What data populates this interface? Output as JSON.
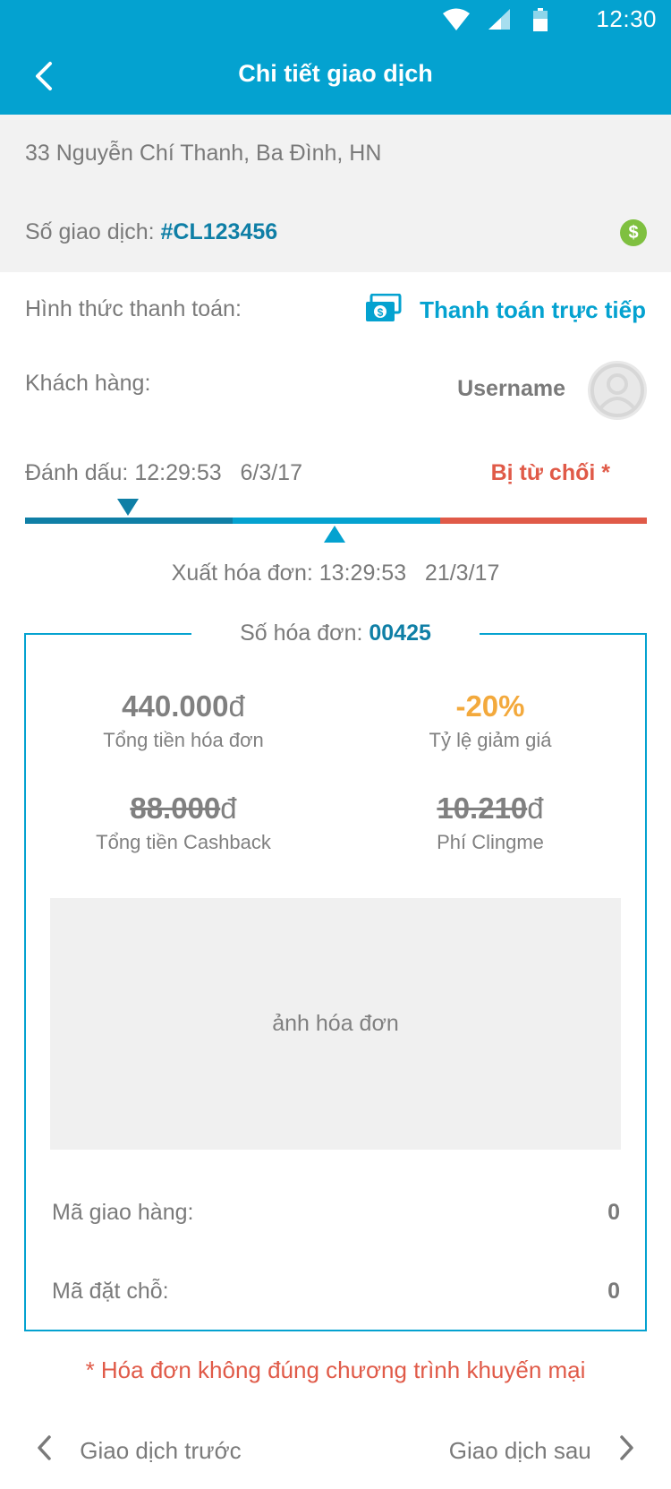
{
  "status_bar": {
    "time": "12:30",
    "icons": [
      "wifi-icon",
      "signal-icon",
      "battery-icon"
    ]
  },
  "header": {
    "title": "Chi tiết giao dịch",
    "back_icon": "back-arrow-icon"
  },
  "store": {
    "address": "33 Nguyễn Chí Thanh, Ba Đình, HN"
  },
  "transaction": {
    "label": "Số giao dịch: ",
    "number": "#CL123456",
    "status_icon": "dollar-circle-icon"
  },
  "payment": {
    "label": "Hình thức thanh toán:",
    "method": "Thanh toán trực tiếp",
    "icon": "cash-icon"
  },
  "customer": {
    "label": "Khách hàng:",
    "name": "Username"
  },
  "timeline": {
    "mark_label": "Đánh dấu: 12:29:53   6/3/17",
    "status": "Bị từ chối *",
    "invoice_label": "Xuất hóa đơn: 13:29:53   21/3/17",
    "colors": [
      "#0f7fa6",
      "#04a2d0",
      "#e05a48"
    ]
  },
  "invoice": {
    "label": "Số hóa đơn: ",
    "number": "00425",
    "total": {
      "value": "440.000",
      "currency": "đ",
      "label": "Tổng tiền hóa đơn"
    },
    "discount": {
      "value": "-20%",
      "label": "Tỷ lệ giảm giá"
    },
    "cashback": {
      "value": "88.000",
      "currency": "đ",
      "label": "Tổng tiền Cashback"
    },
    "fee": {
      "value": "10.210",
      "currency": "đ",
      "label": "Phí Clingme"
    },
    "photo_label": "ảnh hóa đơn",
    "delivery_label": "Mã giao hàng:",
    "delivery_value": "0",
    "reservation_label": "Mã đặt chỗ:",
    "reservation_value": "0"
  },
  "note": "* Hóa đơn không đúng chương trình khuyến mại",
  "navigation": {
    "prev": "Giao dịch trước",
    "next": "Giao dịch sau"
  },
  "colors": {
    "primary": "#04a2d0",
    "dark_blue": "#0f7fa6",
    "red": "#e05a48",
    "orange": "#f3a93c",
    "green": "#7fc040"
  }
}
